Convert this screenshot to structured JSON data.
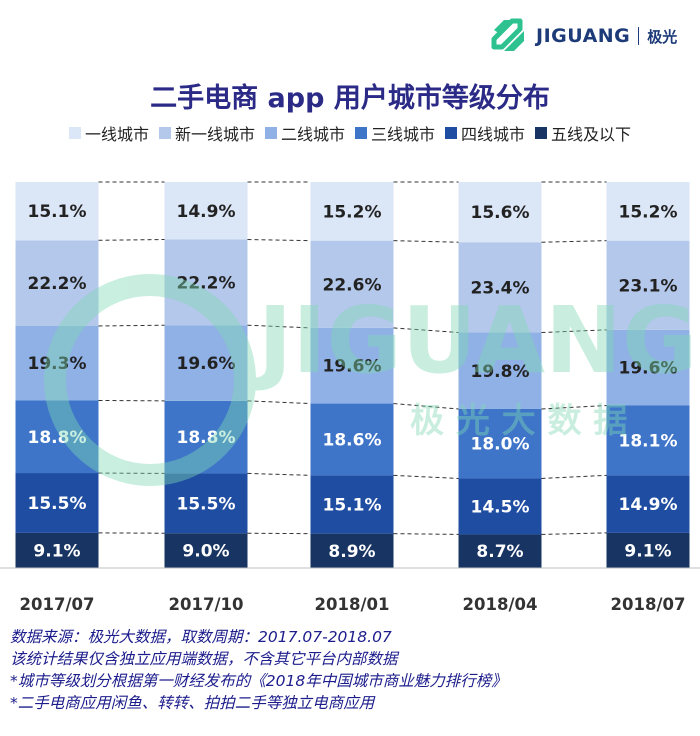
{
  "brand": {
    "name": "JIGUANG",
    "cn": "极光",
    "logo_color": "#2ec291",
    "text_color": "#1d3b78"
  },
  "watermark": {
    "text": "JIGUANG",
    "cn": "极 光 大 数 据",
    "color": "#7fd9b4"
  },
  "chart_data": {
    "type": "bar",
    "stacked": true,
    "normalized": true,
    "title": "二手电商 app 用户城市等级分布",
    "categories": [
      "2017/07",
      "2017/10",
      "2018/01",
      "2018/04",
      "2018/07"
    ],
    "series": [
      {
        "name": "五线及以下",
        "color": "#183462",
        "values": [
          9.1,
          9.0,
          8.9,
          8.7,
          9.1
        ],
        "labels": [
          "9.1%",
          "9.0%",
          "8.9%",
          "8.7%",
          "9.1%"
        ]
      },
      {
        "name": "四线城市",
        "color": "#1f4da2",
        "values": [
          15.5,
          15.5,
          15.1,
          14.5,
          14.9
        ],
        "labels": [
          "15.5%",
          "15.5%",
          "15.1%",
          "14.5%",
          "14.9%"
        ]
      },
      {
        "name": "三线城市",
        "color": "#3e75c9",
        "values": [
          18.8,
          18.8,
          18.6,
          18.0,
          18.1
        ],
        "labels": [
          "18.8%",
          "18.8%",
          "18.6%",
          "18.0%",
          "18.1%"
        ]
      },
      {
        "name": "二线城市",
        "color": "#8fb1e5",
        "values": [
          19.3,
          19.6,
          19.6,
          19.8,
          19.6
        ],
        "labels": [
          "19.3%",
          "19.6%",
          "19.6%",
          "19.8%",
          "19.6%"
        ]
      },
      {
        "name": "新一线城市",
        "color": "#b3c8ea",
        "values": [
          22.2,
          22.2,
          22.6,
          23.4,
          23.1
        ],
        "labels": [
          "22.2%",
          "22.2%",
          "22.6%",
          "23.4%",
          "23.1%"
        ]
      },
      {
        "name": "一线城市",
        "color": "#dbe6f6",
        "values": [
          15.1,
          14.9,
          15.2,
          15.6,
          15.2
        ],
        "labels": [
          "15.1%",
          "14.9%",
          "15.2%",
          "15.6%",
          "15.2%"
        ]
      }
    ],
    "legend_order": [
      "一线城市",
      "新一线城市",
      "二线城市",
      "三线城市",
      "四线城市",
      "五线及以下"
    ],
    "legend_position": "top",
    "connector_lines": "dashed",
    "ylim": [
      0,
      100
    ]
  },
  "notes": [
    "数据来源：极光大数据，取数周期：2017.07-2018.07",
    "该统计结果仅含独立应用端数据，不含其它平台内部数据",
    "*城市等级划分根据第一财经发布的《2018年中国城市商业魅力排行榜》",
    "*二手电商应用闲鱼、转转、拍拍二手等独立电商应用"
  ]
}
